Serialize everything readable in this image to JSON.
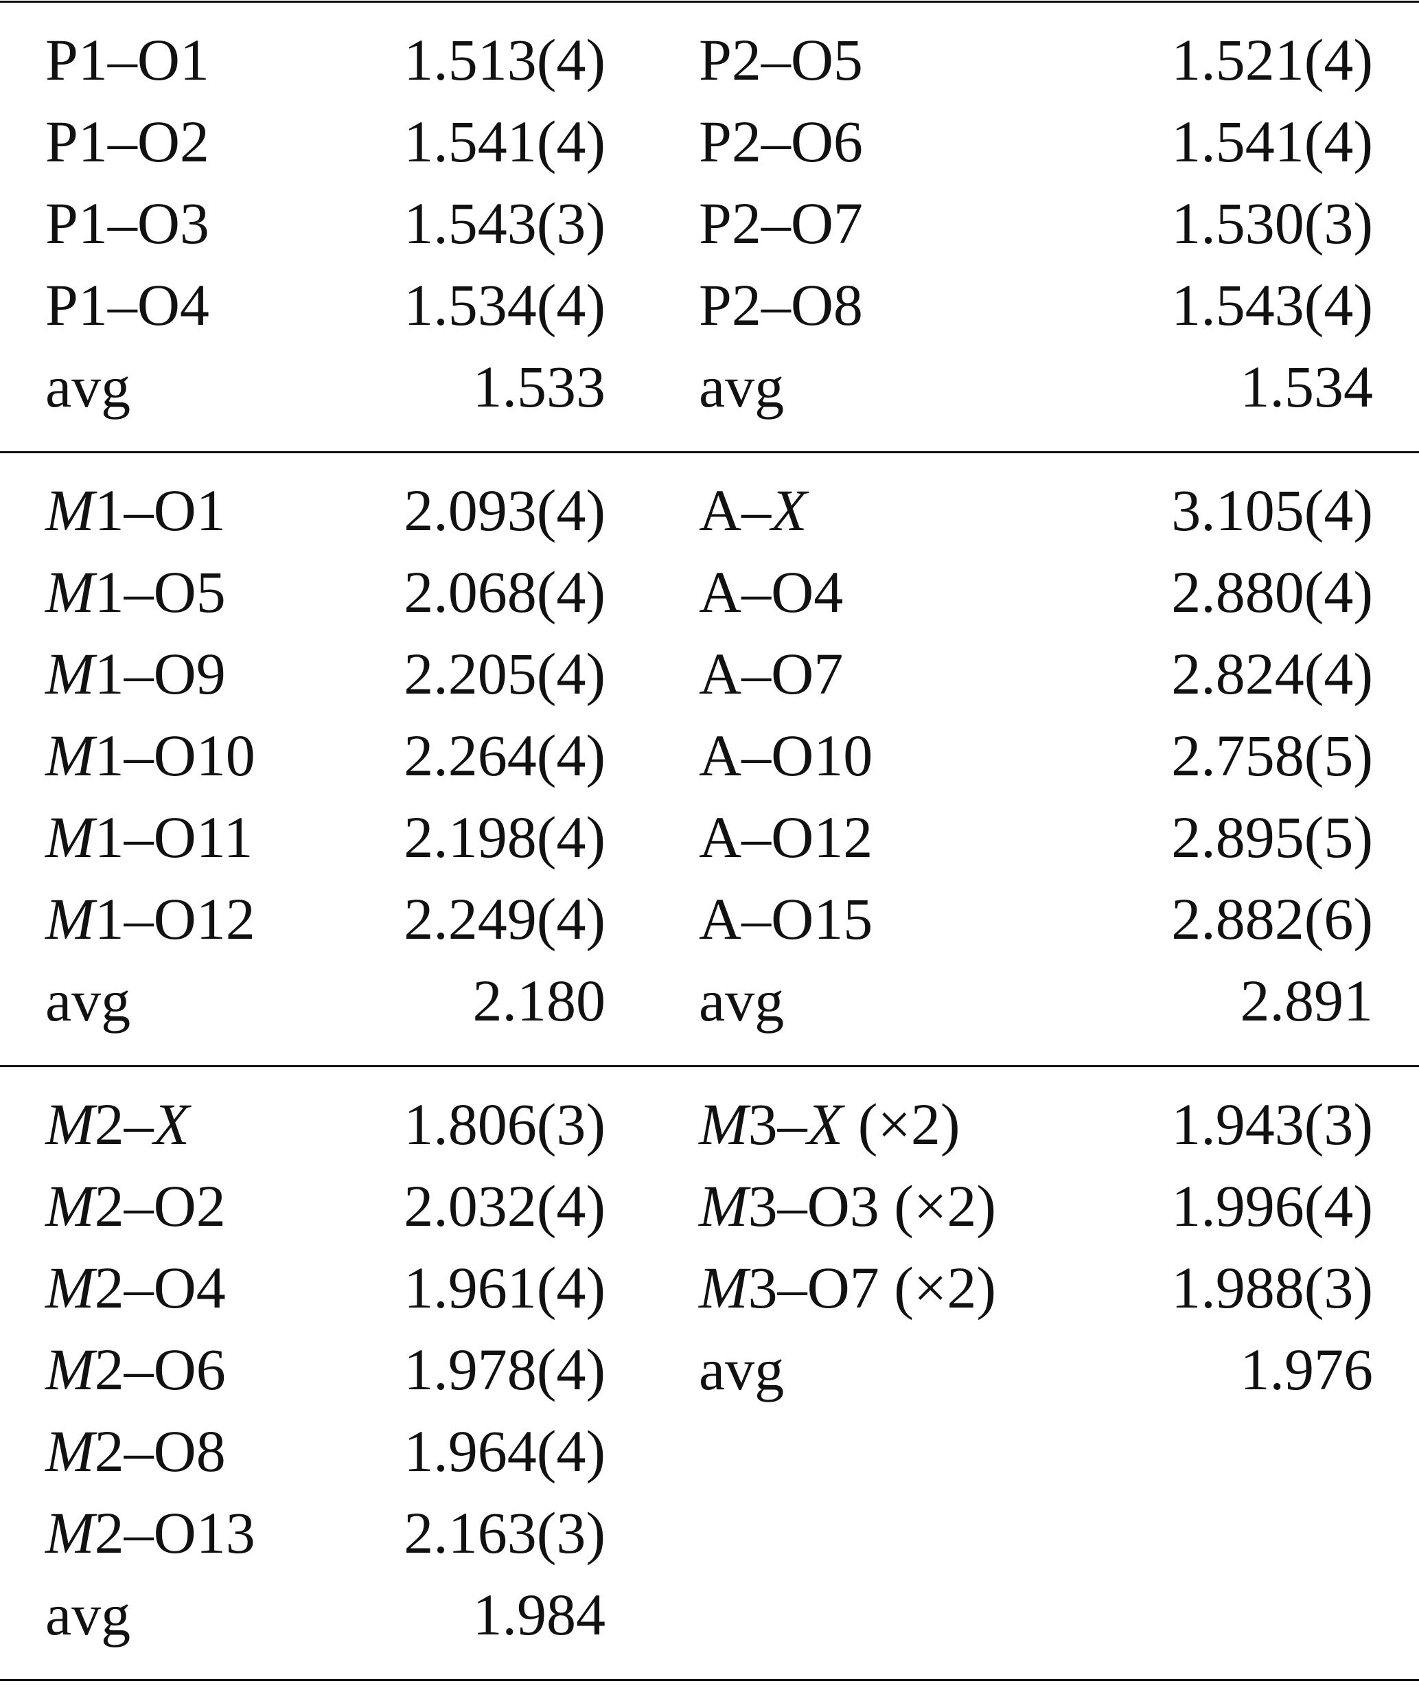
{
  "table": {
    "sections": [
      {
        "left": [
          [
            "P1–O1",
            "1.513(4)"
          ],
          [
            "P1–O2",
            "1.541(4)"
          ],
          [
            "P1–O3",
            "1.543(3)"
          ],
          [
            "P1–O4",
            "1.534(4)"
          ],
          [
            "avg",
            "1.533"
          ]
        ],
        "right": [
          [
            "P2–O5",
            "1.521(4)"
          ],
          [
            "P2–O6",
            "1.541(4)"
          ],
          [
            "P2–O7",
            "1.530(3)"
          ],
          [
            "P2–O8",
            "1.543(4)"
          ],
          [
            "avg",
            "1.534"
          ]
        ]
      },
      {
        "left": [
          [
            "M1–O1",
            "2.093(4)"
          ],
          [
            "M1–O5",
            "2.068(4)"
          ],
          [
            "M1–O9",
            "2.205(4)"
          ],
          [
            "M1–O10",
            "2.264(4)"
          ],
          [
            "M1–O11",
            "2.198(4)"
          ],
          [
            "M1–O12",
            "2.249(4)"
          ],
          [
            "avg",
            "2.180"
          ]
        ],
        "right": [
          [
            "A–X",
            "3.105(4)"
          ],
          [
            "A–O4",
            "2.880(4)"
          ],
          [
            "A–O7",
            "2.824(4)"
          ],
          [
            "A–O10",
            "2.758(5)"
          ],
          [
            "A–O12",
            "2.895(5)"
          ],
          [
            "A–O15",
            "2.882(6)"
          ],
          [
            "avg",
            "2.891"
          ]
        ]
      },
      {
        "left": [
          [
            "M2–X",
            "1.806(3)"
          ],
          [
            "M2–O2",
            "2.032(4)"
          ],
          [
            "M2–O4",
            "1.961(4)"
          ],
          [
            "M2–O6",
            "1.978(4)"
          ],
          [
            "M2–O8",
            "1.964(4)"
          ],
          [
            "M2–O13",
            "2.163(3)"
          ],
          [
            "avg",
            "1.984"
          ]
        ],
        "right": [
          [
            "M3–X (×2)",
            "1.943(3)"
          ],
          [
            "M3–O3 (×2)",
            "1.996(4)"
          ],
          [
            "M3–O7 (×2)",
            "1.988(3)"
          ],
          [
            "avg",
            "1.976"
          ]
        ]
      }
    ]
  }
}
